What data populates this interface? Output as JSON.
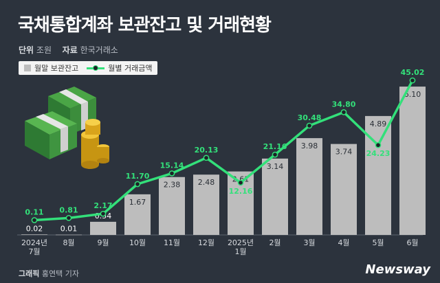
{
  "header": {
    "title": "국채통합계좌 보관잔고 및 거래현황",
    "unit_label": "단위",
    "unit_value": "조원",
    "source_label": "자료",
    "source_value": "한국거래소"
  },
  "footer": {
    "credit_label": "그래픽",
    "credit_value": "홍연택 기자",
    "brand": "Newsway"
  },
  "colors": {
    "background": "#2c333d",
    "bar": "#bdbdbd",
    "line": "#33e07a",
    "value_label": "#33e07a"
  },
  "chart_data": {
    "type": "bar",
    "categories": [
      "2024년 7월",
      "8월",
      "9월",
      "10월",
      "11월",
      "12월",
      "2025년 1월",
      "2월",
      "3월",
      "4월",
      "5월",
      "6월"
    ],
    "series": [
      {
        "name": "월말 보관잔고",
        "type": "bar",
        "values": [
          0.02,
          0.01,
          0.54,
          1.67,
          2.38,
          2.48,
          2.61,
          3.14,
          3.98,
          3.74,
          4.89,
          6.1
        ]
      },
      {
        "name": "월별 거래금액",
        "type": "line",
        "values": [
          0.11,
          0.81,
          2.17,
          11.7,
          15.14,
          20.13,
          12.16,
          21.16,
          30.48,
          34.8,
          24.23,
          45.02
        ]
      }
    ],
    "xlabel": "",
    "ylabel": "",
    "legend_position": "top-left",
    "grid": false
  }
}
